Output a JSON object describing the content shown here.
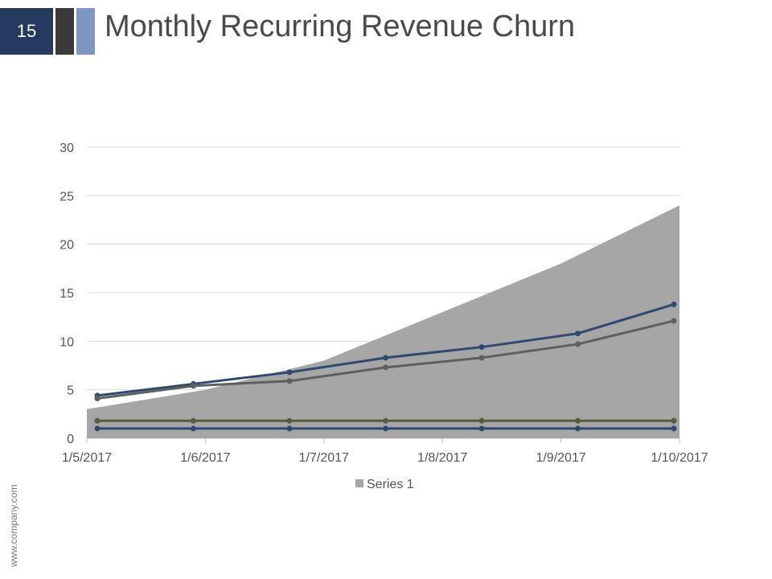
{
  "slide": {
    "number": "15",
    "title": "Monthly Recurring Revenue Churn",
    "footer_url": "www.company.com"
  },
  "colors": {
    "slide_number_bg": "#243a5e",
    "accent_dark": "#3a3a3a",
    "accent_blue": "#7f96c2",
    "area": "#a6a6a6",
    "line_navy": "#2f4a70",
    "line_gray": "#5f5f5f",
    "line_olive": "#5a5a3c",
    "line_bottom": "#2f4a70",
    "gridline": "#d9d9d9"
  },
  "chart_data": {
    "type": "area",
    "x_ticks": [
      "1/5/2017",
      "1/6/2017",
      "1/7/2017",
      "1/8/2017",
      "1/9/2017",
      "1/10/2017"
    ],
    "y_ticks": [
      0,
      5,
      10,
      15,
      20,
      25,
      30
    ],
    "ylim": [
      0,
      30
    ],
    "grid": true,
    "legend": {
      "position": "bottom",
      "entries": [
        "Series 1"
      ]
    },
    "area_series": {
      "name": "Series 1",
      "x": [
        "1/5/2017",
        "1/6/2017",
        "1/7/2017",
        "1/8/2017",
        "1/9/2017",
        "1/10/2017"
      ],
      "values": [
        3,
        5,
        8,
        13,
        18,
        24
      ]
    },
    "line_series": [
      {
        "color": "#2f4a70",
        "values": [
          4.4,
          5.6,
          6.8,
          8.3,
          9.4,
          10.8,
          13.8
        ]
      },
      {
        "color": "#5f5f5f",
        "values": [
          4.1,
          5.4,
          5.9,
          7.3,
          8.3,
          9.7,
          12.1
        ]
      },
      {
        "color": "#5a5a3c",
        "values": [
          1.8,
          1.8,
          1.8,
          1.8,
          1.8,
          1.8,
          1.8
        ]
      },
      {
        "color": "#2f4a70",
        "values": [
          1.0,
          1.0,
          1.0,
          1.0,
          1.0,
          1.0,
          1.0
        ]
      }
    ]
  }
}
